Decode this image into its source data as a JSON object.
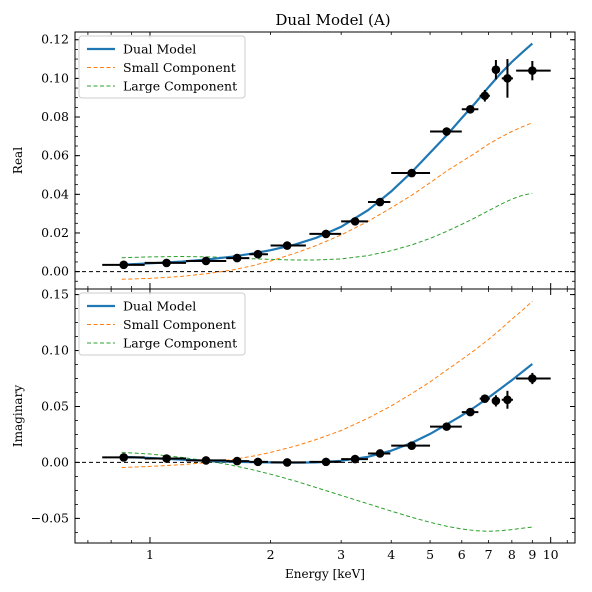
{
  "title": "Dual Model (A)",
  "colors": {
    "dual": "#1f77b4",
    "small": "#ff7f0e",
    "large": "#2ca02c",
    "data": "#000000"
  },
  "chart_data": [
    {
      "type": "line",
      "ylabel": "Real",
      "xscale": "log",
      "xlim": [
        0.65,
        11.5
      ],
      "ylim": [
        -0.009,
        0.124
      ],
      "yticks": [
        0.0,
        0.02,
        0.04,
        0.06,
        0.08,
        0.1,
        0.12
      ],
      "ytick_labels": [
        "0.00",
        "0.02",
        "0.04",
        "0.06",
        "0.08",
        "0.10",
        "0.12"
      ],
      "hline": 0,
      "legend": {
        "placement": "top-left",
        "entries": [
          "Dual Model",
          "Small Component",
          "Large Component"
        ]
      },
      "series": [
        {
          "name": "Dual Model",
          "style": "solid",
          "x": [
            0.85,
            1.0,
            1.2,
            1.4,
            1.6,
            1.8,
            2.0,
            2.3,
            2.6,
            3.0,
            3.5,
            4.0,
            4.5,
            5.0,
            5.5,
            6.0,
            6.5,
            7.0,
            7.5,
            8.0,
            8.5,
            9.0
          ],
          "y": [
            0.0035,
            0.0043,
            0.0052,
            0.0063,
            0.0077,
            0.0093,
            0.0111,
            0.014,
            0.0175,
            0.0232,
            0.0318,
            0.0415,
            0.0515,
            0.0615,
            0.0705,
            0.0795,
            0.0875,
            0.0955,
            0.1025,
            0.1085,
            0.1135,
            0.118
          ]
        },
        {
          "name": "Small Component",
          "style": "dashed",
          "x": [
            0.85,
            1.0,
            1.2,
            1.4,
            1.6,
            1.8,
            2.0,
            2.3,
            2.6,
            3.0,
            3.5,
            4.0,
            4.5,
            5.0,
            5.5,
            6.0,
            6.5,
            7.0,
            7.5,
            8.0,
            8.5,
            9.0
          ],
          "y": [
            -0.004,
            -0.0035,
            -0.0025,
            -0.001,
            0.0008,
            0.003,
            0.0055,
            0.0095,
            0.0135,
            0.019,
            0.026,
            0.033,
            0.0395,
            0.046,
            0.052,
            0.057,
            0.0615,
            0.066,
            0.0695,
            0.0725,
            0.075,
            0.077
          ]
        },
        {
          "name": "Large Component",
          "style": "dashed",
          "x": [
            0.85,
            1.0,
            1.2,
            1.4,
            1.6,
            1.8,
            2.0,
            2.3,
            2.6,
            3.0,
            3.5,
            4.0,
            4.5,
            5.0,
            5.5,
            6.0,
            6.5,
            7.0,
            7.5,
            8.0,
            8.5,
            9.0
          ],
          "y": [
            0.0072,
            0.0076,
            0.0078,
            0.0076,
            0.0072,
            0.0067,
            0.0063,
            0.006,
            0.006,
            0.0066,
            0.0083,
            0.0108,
            0.0138,
            0.0172,
            0.0208,
            0.0245,
            0.028,
            0.0315,
            0.0348,
            0.0375,
            0.0395,
            0.0405
          ]
        }
      ],
      "data_points": [
        {
          "x": 0.86,
          "xerr": [
            0.76,
            0.97
          ],
          "y": 0.0035,
          "yerr": 0.0008
        },
        {
          "x": 1.1,
          "xerr": [
            0.97,
            1.23
          ],
          "y": 0.0045,
          "yerr": 0.0008
        },
        {
          "x": 1.38,
          "xerr": [
            1.23,
            1.55
          ],
          "y": 0.0055,
          "yerr": 0.0008
        },
        {
          "x": 1.65,
          "xerr": [
            1.55,
            1.77
          ],
          "y": 0.007,
          "yerr": 0.0008
        },
        {
          "x": 1.86,
          "xerr": [
            1.77,
            1.97
          ],
          "y": 0.009,
          "yerr": 0.0008
        },
        {
          "x": 2.2,
          "xerr": [
            2.0,
            2.45
          ],
          "y": 0.0135,
          "yerr": 0.0008
        },
        {
          "x": 2.75,
          "xerr": [
            2.5,
            3.0
          ],
          "y": 0.0195,
          "yerr": 0.001
        },
        {
          "x": 3.25,
          "xerr": [
            3.0,
            3.5
          ],
          "y": 0.026,
          "yerr": 0.001
        },
        {
          "x": 3.75,
          "xerr": [
            3.5,
            3.98
          ],
          "y": 0.036,
          "yerr": 0.001
        },
        {
          "x": 4.5,
          "xerr": [
            4.0,
            5.0
          ],
          "y": 0.051,
          "yerr": 0.001
        },
        {
          "x": 5.5,
          "xerr": [
            5.0,
            6.0
          ],
          "y": 0.0725,
          "yerr": 0.0012
        },
        {
          "x": 6.3,
          "xerr": [
            6.0,
            6.6
          ],
          "y": 0.084,
          "yerr": 0.002
        },
        {
          "x": 6.85,
          "xerr": [
            6.65,
            7.05
          ],
          "y": 0.091,
          "yerr": 0.003
        },
        {
          "x": 7.3,
          "xerr": [
            7.15,
            7.45
          ],
          "y": 0.1045,
          "yerr": 0.005
        },
        {
          "x": 7.8,
          "xerr": [
            7.55,
            8.05
          ],
          "y": 0.1,
          "yerr": 0.01
        },
        {
          "x": 9.0,
          "xerr": [
            8.2,
            10.0
          ],
          "y": 0.104,
          "yerr": 0.005
        }
      ]
    },
    {
      "type": "line",
      "xlabel": "Energy [keV]",
      "ylabel": "Imaginary",
      "xscale": "log",
      "xlim": [
        0.65,
        11.5
      ],
      "ylim": [
        -0.072,
        0.155
      ],
      "xticks": [
        1,
        2,
        3,
        4,
        5,
        6,
        7,
        8,
        9,
        10
      ],
      "xtick_labels": [
        "1",
        "2",
        "3",
        "4",
        "5",
        "6",
        "7",
        "8",
        "9",
        "10"
      ],
      "yticks": [
        -0.05,
        0.0,
        0.05,
        0.1,
        0.15
      ],
      "ytick_labels": [
        "−0.05",
        "0.00",
        "0.05",
        "0.10",
        "0.15"
      ],
      "hline": 0,
      "legend": {
        "placement": "top-left",
        "entries": [
          "Dual Model",
          "Small Component",
          "Large Component"
        ]
      },
      "series": [
        {
          "name": "Dual Model",
          "style": "solid",
          "x": [
            0.85,
            1.0,
            1.2,
            1.4,
            1.6,
            1.8,
            2.0,
            2.3,
            2.6,
            3.0,
            3.5,
            4.0,
            4.5,
            5.0,
            5.5,
            6.0,
            6.5,
            7.0,
            7.5,
            8.0,
            8.5,
            9.0
          ],
          "y": [
            0.005,
            0.004,
            0.0025,
            0.0013,
            0.0006,
            0.0002,
            0.0,
            -0.0002,
            0.0,
            0.0015,
            0.005,
            0.0105,
            0.0175,
            0.0255,
            0.034,
            0.042,
            0.05,
            0.058,
            0.066,
            0.0735,
            0.081,
            0.088
          ]
        },
        {
          "name": "Small Component",
          "style": "dashed",
          "x": [
            0.85,
            1.0,
            1.2,
            1.4,
            1.6,
            1.8,
            2.0,
            2.3,
            2.6,
            3.0,
            3.5,
            4.0,
            4.5,
            5.0,
            5.5,
            6.0,
            6.5,
            7.0,
            7.5,
            8.0,
            8.5,
            9.0
          ],
          "y": [
            -0.0045,
            -0.0035,
            -0.002,
            0.0,
            0.0025,
            0.0055,
            0.009,
            0.0145,
            0.0205,
            0.0285,
            0.0395,
            0.0505,
            0.0615,
            0.072,
            0.0825,
            0.092,
            0.101,
            0.11,
            0.119,
            0.128,
            0.136,
            0.144
          ]
        },
        {
          "name": "Large Component",
          "style": "dashed",
          "x": [
            0.85,
            1.0,
            1.2,
            1.4,
            1.6,
            1.8,
            2.0,
            2.3,
            2.6,
            3.0,
            3.5,
            4.0,
            4.5,
            5.0,
            5.5,
            6.0,
            6.5,
            7.0,
            7.5,
            8.0,
            8.5,
            9.0
          ],
          "y": [
            0.009,
            0.0075,
            0.0045,
            0.0012,
            -0.0025,
            -0.0065,
            -0.0105,
            -0.0165,
            -0.0225,
            -0.0295,
            -0.037,
            -0.0435,
            -0.049,
            -0.0535,
            -0.057,
            -0.0595,
            -0.061,
            -0.0615,
            -0.061,
            -0.06,
            -0.0588,
            -0.0578
          ]
        }
      ],
      "data_points": [
        {
          "x": 0.86,
          "xerr": [
            0.76,
            0.97
          ],
          "y": 0.0045,
          "yerr": 0.0008
        },
        {
          "x": 1.1,
          "xerr": [
            0.97,
            1.23
          ],
          "y": 0.0035,
          "yerr": 0.0008
        },
        {
          "x": 1.38,
          "xerr": [
            1.23,
            1.55
          ],
          "y": 0.0018,
          "yerr": 0.0008
        },
        {
          "x": 1.65,
          "xerr": [
            1.55,
            1.77
          ],
          "y": 0.0012,
          "yerr": 0.0008
        },
        {
          "x": 1.86,
          "xerr": [
            1.77,
            1.97
          ],
          "y": 0.0005,
          "yerr": 0.0008
        },
        {
          "x": 2.2,
          "xerr": [
            2.0,
            2.45
          ],
          "y": 0.0,
          "yerr": 0.0008
        },
        {
          "x": 2.75,
          "xerr": [
            2.5,
            3.0
          ],
          "y": 0.0005,
          "yerr": 0.0008
        },
        {
          "x": 3.25,
          "xerr": [
            3.0,
            3.5
          ],
          "y": 0.003,
          "yerr": 0.001
        },
        {
          "x": 3.75,
          "xerr": [
            3.5,
            3.98
          ],
          "y": 0.008,
          "yerr": 0.001
        },
        {
          "x": 4.5,
          "xerr": [
            4.0,
            5.0
          ],
          "y": 0.015,
          "yerr": 0.001
        },
        {
          "x": 5.5,
          "xerr": [
            5.0,
            6.0
          ],
          "y": 0.032,
          "yerr": 0.0012
        },
        {
          "x": 6.3,
          "xerr": [
            6.0,
            6.6
          ],
          "y": 0.045,
          "yerr": 0.002
        },
        {
          "x": 6.85,
          "xerr": [
            6.65,
            7.05
          ],
          "y": 0.057,
          "yerr": 0.003
        },
        {
          "x": 7.3,
          "xerr": [
            7.15,
            7.45
          ],
          "y": 0.055,
          "yerr": 0.005
        },
        {
          "x": 7.8,
          "xerr": [
            7.55,
            8.05
          ],
          "y": 0.056,
          "yerr": 0.008
        },
        {
          "x": 9.0,
          "xerr": [
            8.2,
            10.0
          ],
          "y": 0.075,
          "yerr": 0.005
        }
      ]
    }
  ]
}
